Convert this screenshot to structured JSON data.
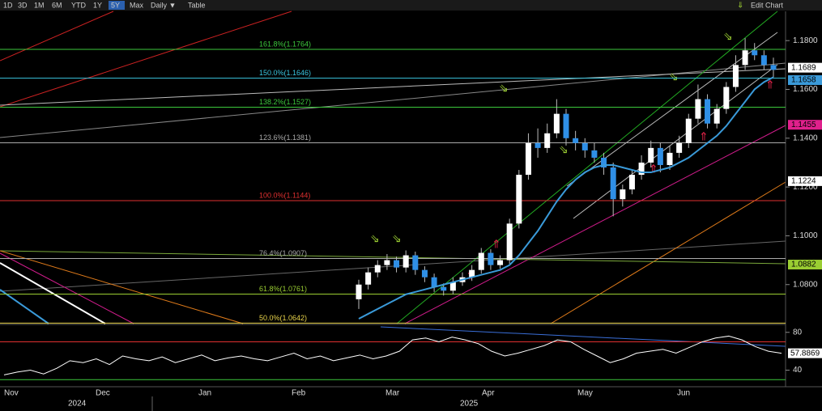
{
  "toolbar": {
    "buttons": [
      "1D",
      "3D",
      "1M",
      "6M",
      "YTD",
      "1Y",
      "5Y",
      "Max",
      "Daily ▼",
      "Table"
    ],
    "active_index": 6,
    "edit": "Edit Chart"
  },
  "chart_data": {
    "type": "candlestick",
    "open": [
      1.074,
      1.08,
      1.085,
      1.088,
      1.09,
      1.087,
      1.092,
      1.086,
      1.083,
      1.079,
      1.0775,
      1.081,
      1.083,
      1.086,
      1.093,
      1.088,
      1.09,
      1.105,
      1.125,
      1.138,
      1.136,
      1.142,
      1.15,
      1.14,
      1.138,
      1.135,
      1.132,
      1.128,
      1.115,
      1.119,
      1.125,
      1.13,
      1.136,
      1.129,
      1.134,
      1.138,
      1.148,
      1.156,
      1.146,
      1.152,
      1.161,
      1.17,
      1.176,
      1.174,
      1.17
    ],
    "high": [
      1.082,
      1.087,
      1.09,
      1.0925,
      1.0915,
      1.094,
      1.0935,
      1.0875,
      1.0845,
      1.0805,
      1.083,
      1.085,
      1.088,
      1.095,
      1.0945,
      1.092,
      1.107,
      1.127,
      1.142,
      1.144,
      1.146,
      1.156,
      1.152,
      1.143,
      1.14,
      1.138,
      1.134,
      1.13,
      1.121,
      1.127,
      1.133,
      1.139,
      1.138,
      1.137,
      1.141,
      1.15,
      1.162,
      1.158,
      1.154,
      1.163,
      1.174,
      1.181,
      1.179,
      1.176,
      1.173
    ],
    "low": [
      1.07,
      1.078,
      1.083,
      1.086,
      1.085,
      1.085,
      1.084,
      1.081,
      1.077,
      1.0755,
      1.076,
      1.0795,
      1.0815,
      1.0845,
      1.086,
      1.0865,
      1.0885,
      1.103,
      1.123,
      1.132,
      1.134,
      1.14,
      1.137,
      1.135,
      1.132,
      1.13,
      1.125,
      1.108,
      1.112,
      1.117,
      1.123,
      1.128,
      1.126,
      1.127,
      1.132,
      1.136,
      1.146,
      1.144,
      1.144,
      1.15,
      1.159,
      1.168,
      1.172,
      1.168,
      1.165
    ],
    "close": [
      1.08,
      1.085,
      1.088,
      1.09,
      1.087,
      1.092,
      1.086,
      1.083,
      1.079,
      1.0775,
      1.081,
      1.083,
      1.086,
      1.093,
      1.088,
      1.09,
      1.105,
      1.125,
      1.138,
      1.136,
      1.142,
      1.15,
      1.14,
      1.138,
      1.135,
      1.132,
      1.128,
      1.115,
      1.119,
      1.125,
      1.13,
      1.136,
      1.129,
      1.134,
      1.138,
      1.148,
      1.156,
      1.146,
      1.152,
      1.161,
      1.17,
      1.176,
      1.174,
      1.17,
      1.168
    ],
    "up_color": "#ffffff",
    "down_color": "#2f8fe6",
    "ma": {
      "color": "#3a9ad9",
      "values": [
        1.066,
        1.068,
        1.07,
        1.072,
        1.074,
        1.076,
        1.077,
        1.078,
        1.079,
        1.08,
        1.081,
        1.082,
        1.083,
        1.084,
        1.085,
        1.086,
        1.088,
        1.092,
        1.097,
        1.102,
        1.108,
        1.114,
        1.119,
        1.123,
        1.126,
        1.128,
        1.129,
        1.129,
        1.128,
        1.127,
        1.126,
        1.126,
        1.127,
        1.128,
        1.13,
        1.132,
        1.135,
        1.138,
        1.141,
        1.145,
        1.15,
        1.155,
        1.16,
        1.163,
        1.165
      ]
    },
    "ylim": [
      1.064,
      1.192
    ],
    "yticks": [
      {
        "value": 1.08,
        "label": "1.0800"
      },
      {
        "value": 1.1,
        "label": "1.1000"
      },
      {
        "value": 1.12,
        "label": "1.1200"
      },
      {
        "value": 1.14,
        "label": "1.1400"
      },
      {
        "value": 1.16,
        "label": "1.1600"
      },
      {
        "value": 1.18,
        "label": "1.1800"
      }
    ],
    "fib_levels": [
      {
        "value": 1.1764,
        "label": "161.8%(1.1764)",
        "color": "#3cc83c"
      },
      {
        "value": 1.1646,
        "label": "150.0%(1.1646)",
        "color": "#39c6e0"
      },
      {
        "value": 1.1527,
        "label": "138.2%(1.1527)",
        "color": "#3cc83c"
      },
      {
        "value": 1.1381,
        "label": "123.6%(1.1381)",
        "color": "#aaaaaa"
      },
      {
        "value": 1.1144,
        "label": "100.0%(1.1144)",
        "color": "#e03030"
      },
      {
        "value": 1.0907,
        "label": "76.4%(1.0907)",
        "color": "#aaaaaa"
      },
      {
        "value": 1.0761,
        "label": "61.8%(1.0761)",
        "color": "#9acd32"
      },
      {
        "value": 1.0642,
        "label": "50.0%(1.0642)",
        "color": "#e8d34a"
      }
    ],
    "price_tags": [
      {
        "value": 1.1689,
        "label": "1.1689",
        "color": "#ffffff"
      },
      {
        "value": 1.1658,
        "label": "1.1658",
        "color": "#3a9ad9"
      },
      {
        "value": 1.1455,
        "label": "1.1455",
        "color": "#e0208c"
      },
      {
        "value": 1.1224,
        "label": "1.1224",
        "color": "#ffffff"
      },
      {
        "value": 1.0882,
        "label": "1.0882",
        "color": "#9acd32"
      }
    ],
    "months": [
      "Nov",
      "Dec",
      "Jan",
      "Feb",
      "Mar",
      "Apr",
      "May",
      "Jun"
    ],
    "years": [
      "2024",
      "2025"
    ],
    "rsi": {
      "color": "#ffffff",
      "values": [
        35,
        38,
        40,
        36,
        42,
        50,
        48,
        52,
        46,
        55,
        52,
        50,
        54,
        48,
        52,
        56,
        50,
        53,
        55,
        52,
        50,
        54,
        58,
        52,
        55,
        50,
        53,
        56,
        52,
        55,
        60,
        72,
        74,
        70,
        75,
        72,
        68,
        60,
        55,
        58,
        62,
        66,
        72,
        70,
        62,
        55,
        48,
        52,
        58,
        60,
        62,
        58,
        64,
        70,
        74,
        76,
        72,
        65,
        60,
        57.8869
      ],
      "ylim": [
        22.5,
        87.5
      ],
      "yticks": [
        40,
        80
      ],
      "upper": 70,
      "lower": 30
    }
  }
}
